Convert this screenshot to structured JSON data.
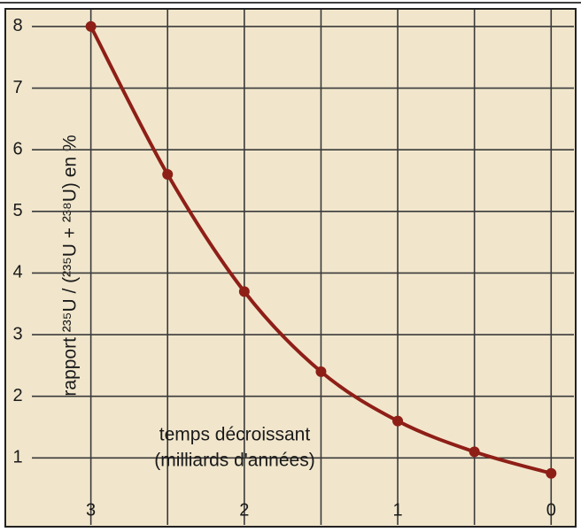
{
  "chart_data": {
    "type": "line",
    "ylabel": "rapport ²³⁵U / (²³⁵U + ²³⁸U) en %",
    "annotations": [
      "temps décroissant",
      "(milliards d'années)"
    ],
    "x": [
      3,
      2.5,
      2,
      1.5,
      1,
      0.5,
      0
    ],
    "series": [
      {
        "color": "#8e1f17",
        "values": [
          8.0,
          5.6,
          3.7,
          2.4,
          1.6,
          1.1,
          0.75
        ]
      }
    ],
    "xlim": [
      3.5,
      -0.16
    ],
    "xticks": [
      3,
      2,
      1,
      0
    ],
    "xgrid": [
      3,
      2.5,
      2,
      1.5,
      1,
      0.5,
      0
    ],
    "ylim": [
      0,
      8.3
    ],
    "yticks": [
      1,
      2,
      3,
      4,
      5,
      6,
      7,
      8
    ],
    "grid": true
  }
}
